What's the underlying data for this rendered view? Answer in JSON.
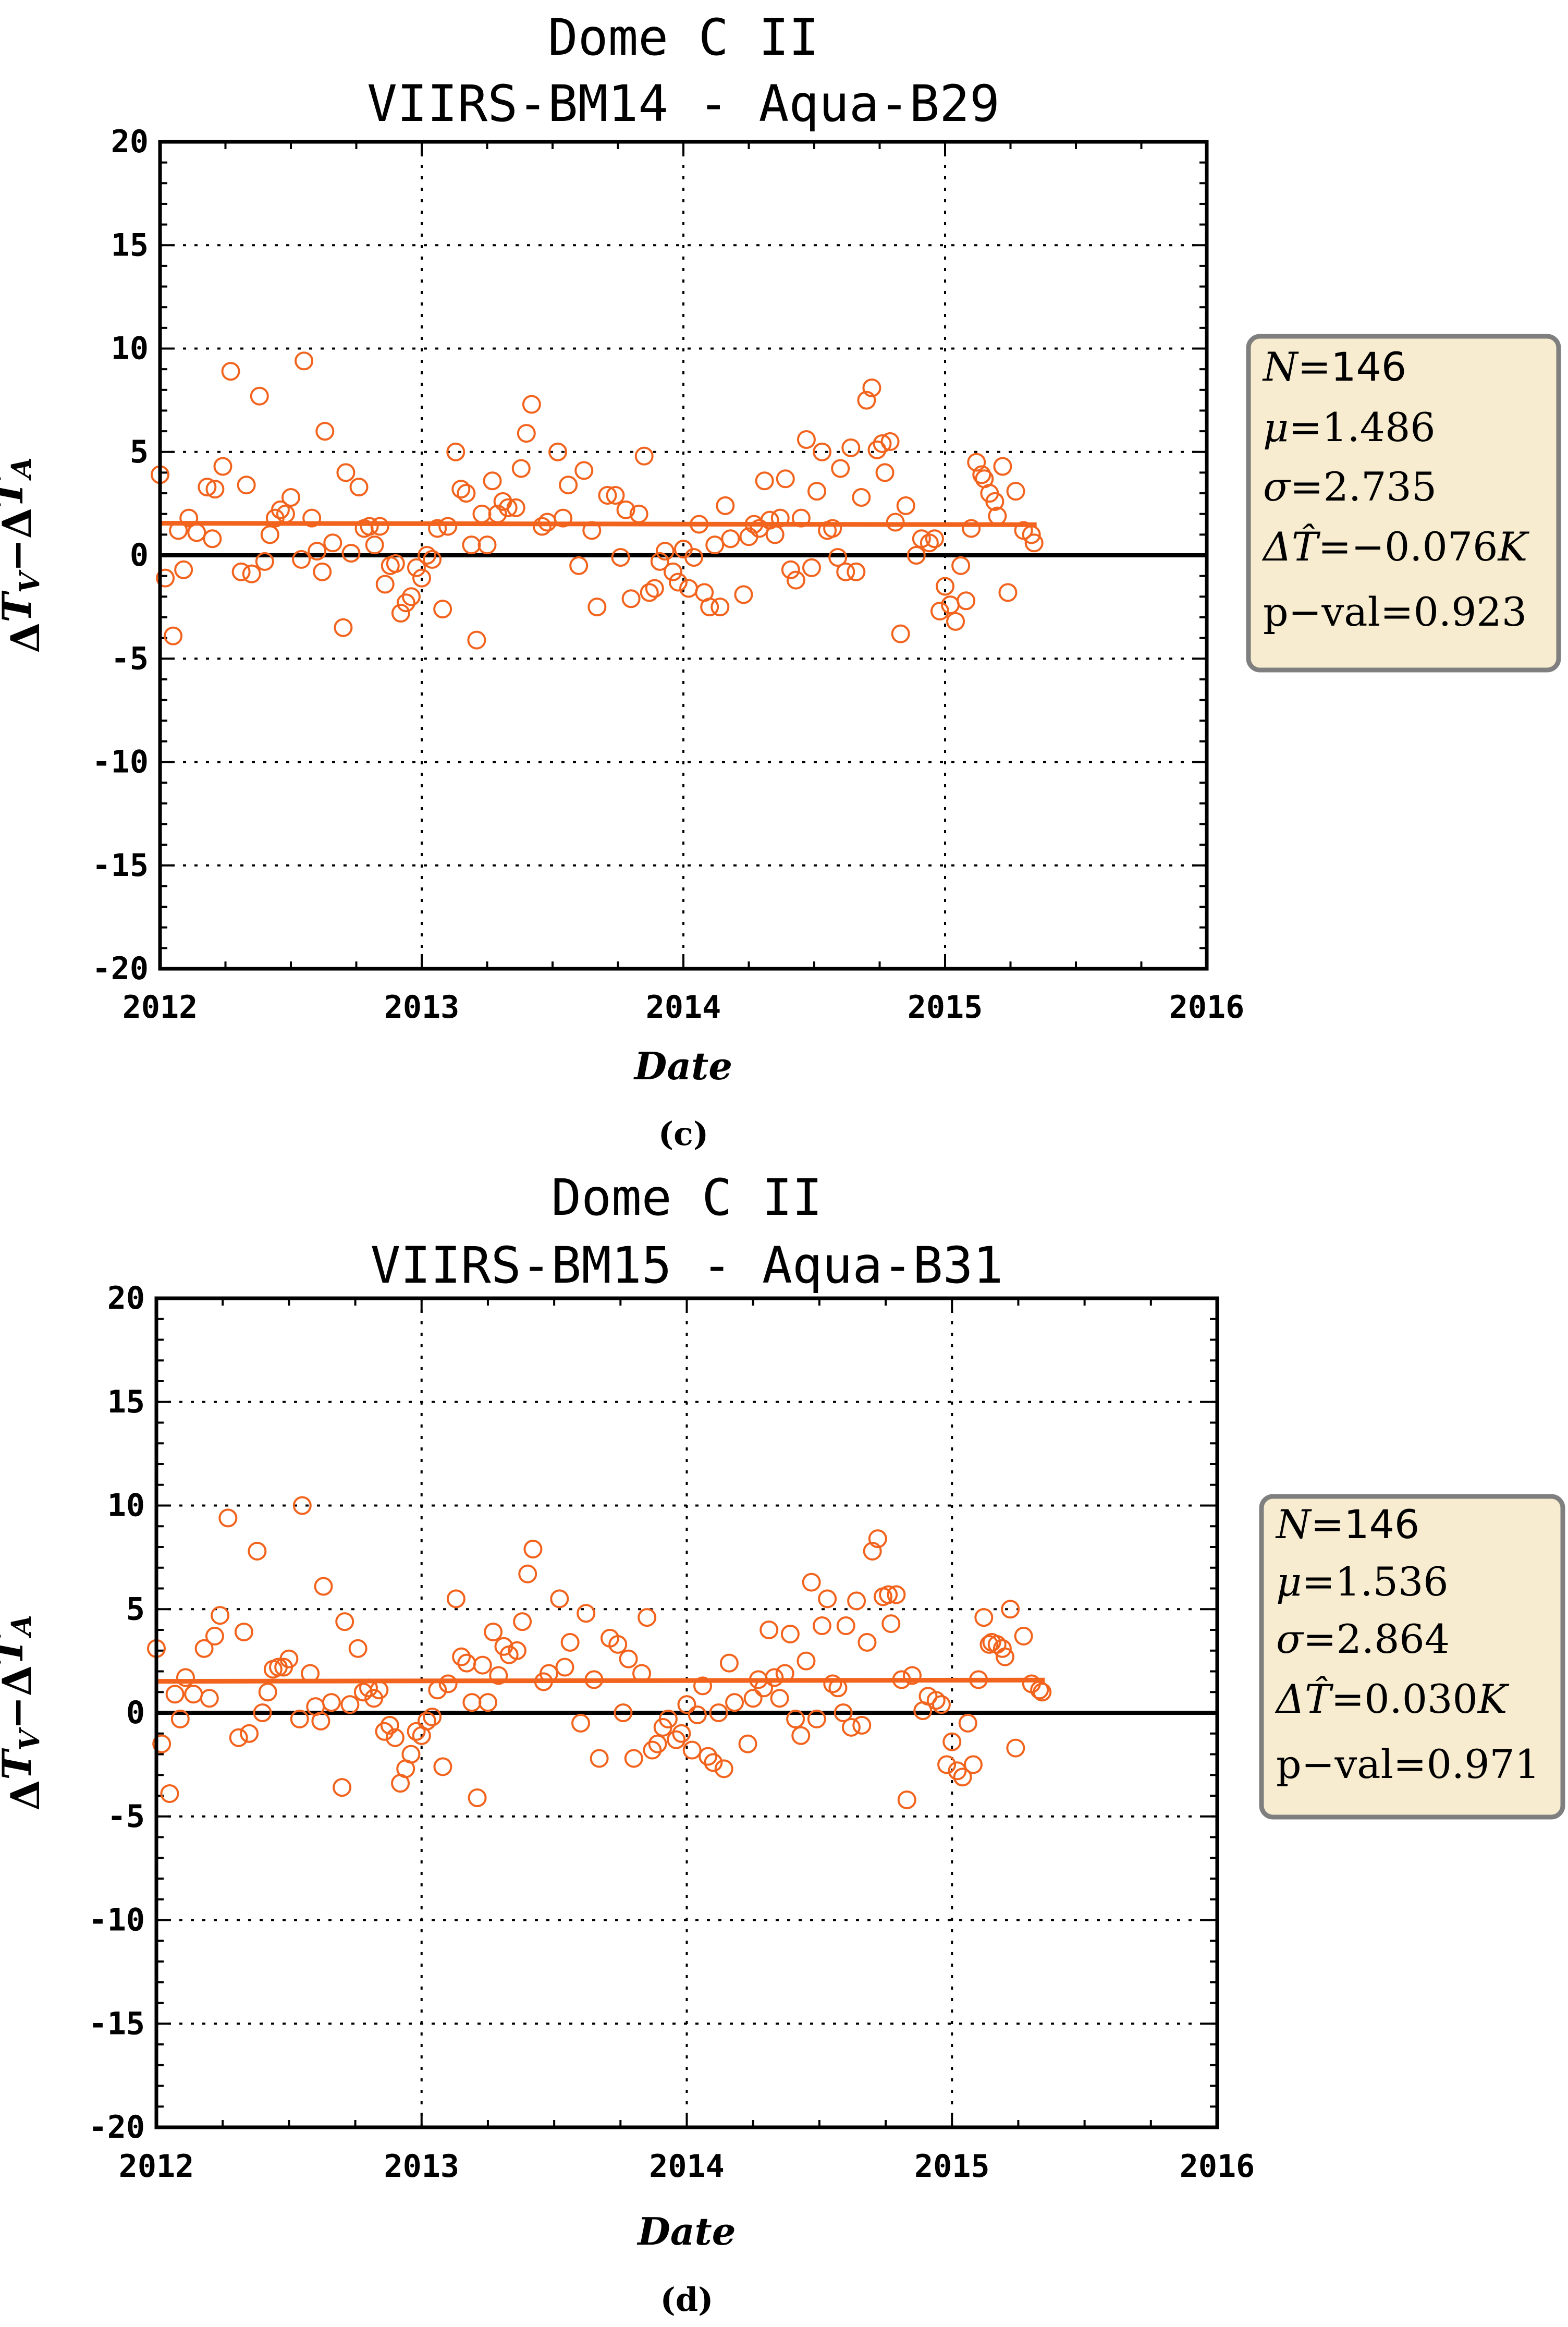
{
  "chart_data": [
    {
      "type": "scatter",
      "title_lines": [
        "Dome C II",
        "VIIRS-BM14 - Aqua-B29"
      ],
      "xlabel": "Date",
      "ylabel": "ΔT_V−ΔT_A",
      "xlim": [
        2012,
        2016
      ],
      "ylim": [
        -20,
        20
      ],
      "xticks": [
        "2012",
        "2013",
        "2014",
        "2015",
        "2016"
      ],
      "yticks": [
        "20",
        "15",
        "10",
        "5",
        "0",
        "-5",
        "-10",
        "-15",
        "-20"
      ],
      "caption": "(c)",
      "stats": {
        "N_label": "N",
        "N": "146",
        "mu_label": "μ",
        "mu": "1.486",
        "sigma_label": "σ",
        "sigma": "2.735",
        "dT_label": "ΔT̂",
        "dT": "−0.076",
        "dT_unit": "K",
        "pval_label": "p−val",
        "pval": "0.923"
      },
      "trend": {
        "x": [
          2012.0,
          2015.35
        ],
        "y": [
          1.55,
          1.48
        ]
      },
      "points": [
        [
          2012.0,
          3.9
        ],
        [
          2012.02,
          -1.1
        ],
        [
          2012.05,
          -3.9
        ],
        [
          2012.07,
          1.2
        ],
        [
          2012.09,
          -0.7
        ],
        [
          2012.11,
          1.8
        ],
        [
          2012.14,
          1.1
        ],
        [
          2012.18,
          3.3
        ],
        [
          2012.2,
          0.8
        ],
        [
          2012.21,
          3.2
        ],
        [
          2012.24,
          4.3
        ],
        [
          2012.27,
          8.9
        ],
        [
          2012.31,
          -0.8
        ],
        [
          2012.33,
          3.4
        ],
        [
          2012.35,
          -0.9
        ],
        [
          2012.38,
          7.7
        ],
        [
          2012.4,
          -0.3
        ],
        [
          2012.42,
          1.0
        ],
        [
          2012.44,
          1.8
        ],
        [
          2012.46,
          2.2
        ],
        [
          2012.48,
          2.0
        ],
        [
          2012.5,
          2.8
        ],
        [
          2012.54,
          -0.2
        ],
        [
          2012.55,
          9.4
        ],
        [
          2012.58,
          1.8
        ],
        [
          2012.6,
          0.2
        ],
        [
          2012.62,
          -0.8
        ],
        [
          2012.63,
          6.0
        ],
        [
          2012.7,
          -3.5
        ],
        [
          2012.71,
          4.0
        ],
        [
          2012.73,
          0.1
        ],
        [
          2012.76,
          3.3
        ],
        [
          2012.78,
          1.3
        ],
        [
          2012.8,
          1.4
        ],
        [
          2012.82,
          0.5
        ],
        [
          2012.84,
          1.4
        ],
        [
          2012.86,
          -1.4
        ],
        [
          2012.88,
          -0.5
        ],
        [
          2012.9,
          -0.4
        ],
        [
          2012.92,
          -2.8
        ],
        [
          2012.94,
          -2.3
        ],
        [
          2012.96,
          -2.0
        ],
        [
          2012.98,
          -0.6
        ],
        [
          2013.0,
          -1.1
        ],
        [
          2013.02,
          0.0
        ],
        [
          2013.04,
          -0.2
        ],
        [
          2013.06,
          1.3
        ],
        [
          2013.08,
          -2.6
        ],
        [
          2013.1,
          1.4
        ],
        [
          2013.13,
          5.0
        ],
        [
          2013.15,
          3.2
        ],
        [
          2013.17,
          3.0
        ],
        [
          2013.19,
          0.5
        ],
        [
          2013.21,
          -4.1
        ],
        [
          2013.23,
          2.0
        ],
        [
          2013.25,
          0.5
        ],
        [
          2013.27,
          3.6
        ],
        [
          2013.29,
          2.0
        ],
        [
          2013.31,
          2.6
        ],
        [
          2013.33,
          2.3
        ],
        [
          2013.36,
          2.3
        ],
        [
          2013.38,
          4.2
        ],
        [
          2013.4,
          5.9
        ],
        [
          2013.42,
          7.3
        ],
        [
          2013.46,
          1.4
        ],
        [
          2013.52,
          5.0
        ],
        [
          2013.54,
          1.8
        ],
        [
          2013.56,
          3.4
        ],
        [
          2013.6,
          -0.5
        ],
        [
          2013.62,
          4.1
        ],
        [
          2013.65,
          1.2
        ],
        [
          2013.67,
          -2.5
        ],
        [
          2013.71,
          2.9
        ],
        [
          2013.74,
          2.9
        ],
        [
          2013.76,
          -0.1
        ],
        [
          2013.78,
          2.2
        ],
        [
          2013.8,
          -2.1
        ],
        [
          2013.83,
          2.0
        ],
        [
          2013.85,
          4.8
        ],
        [
          2013.87,
          -1.8
        ],
        [
          2013.89,
          -1.6
        ],
        [
          2013.91,
          -0.3
        ],
        [
          2013.93,
          0.2
        ],
        [
          2013.96,
          -0.8
        ],
        [
          2013.98,
          -1.3
        ],
        [
          2014.0,
          0.3
        ],
        [
          2014.02,
          -1.6
        ],
        [
          2014.04,
          -0.1
        ],
        [
          2014.06,
          1.5
        ],
        [
          2014.08,
          -1.8
        ],
        [
          2014.1,
          -2.5
        ],
        [
          2014.12,
          0.5
        ],
        [
          2014.14,
          -2.5
        ],
        [
          2014.16,
          2.4
        ],
        [
          2014.18,
          0.8
        ],
        [
          2014.23,
          -1.9
        ],
        [
          2014.27,
          1.5
        ],
        [
          2014.29,
          1.3
        ],
        [
          2014.31,
          3.6
        ],
        [
          2014.33,
          1.7
        ],
        [
          2014.35,
          1.0
        ],
        [
          2014.37,
          1.8
        ],
        [
          2014.39,
          3.7
        ],
        [
          2014.41,
          -0.7
        ],
        [
          2014.43,
          -1.2
        ],
        [
          2014.45,
          1.8
        ],
        [
          2014.47,
          5.6
        ],
        [
          2014.49,
          -0.6
        ],
        [
          2014.51,
          3.1
        ],
        [
          2014.53,
          5.0
        ],
        [
          2014.57,
          1.3
        ],
        [
          2014.59,
          -0.1
        ],
        [
          2014.6,
          4.2
        ],
        [
          2014.62,
          -0.8
        ],
        [
          2014.64,
          5.2
        ],
        [
          2014.66,
          -0.8
        ],
        [
          2014.68,
          2.8
        ],
        [
          2014.7,
          7.5
        ],
        [
          2014.72,
          8.1
        ],
        [
          2014.74,
          5.1
        ],
        [
          2014.76,
          5.4
        ],
        [
          2014.77,
          4.0
        ],
        [
          2014.79,
          5.5
        ],
        [
          2014.81,
          1.6
        ],
        [
          2014.83,
          -3.8
        ],
        [
          2014.85,
          2.4
        ],
        [
          2014.89,
          0.0
        ],
        [
          2014.91,
          0.8
        ],
        [
          2014.94,
          0.6
        ],
        [
          2014.96,
          0.8
        ],
        [
          2014.98,
          -2.7
        ],
        [
          2015.0,
          -1.5
        ],
        [
          2015.02,
          -2.4
        ],
        [
          2015.04,
          -3.2
        ],
        [
          2015.06,
          -0.5
        ],
        [
          2015.08,
          -2.2
        ],
        [
          2015.1,
          1.3
        ],
        [
          2015.12,
          4.5
        ],
        [
          2015.14,
          3.9
        ],
        [
          2015.15,
          3.7
        ],
        [
          2015.17,
          3.0
        ],
        [
          2015.2,
          1.9
        ],
        [
          2015.22,
          4.3
        ],
        [
          2015.24,
          -1.8
        ],
        [
          2015.27,
          3.1
        ],
        [
          2015.3,
          1.2
        ],
        [
          2015.33,
          1.0
        ],
        [
          2015.34,
          0.6
        ],
        [
          2014.55,
          1.2
        ],
        [
          2013.48,
          1.6
        ],
        [
          2012.66,
          0.6
        ],
        [
          2014.25,
          0.9
        ],
        [
          2015.19,
          2.6
        ]
      ]
    },
    {
      "type": "scatter",
      "title_lines": [
        "Dome C II",
        "VIIRS-BM15 - Aqua-B31"
      ],
      "xlabel": "Date",
      "ylabel": "ΔT_V−ΔT_A",
      "xlim": [
        2012,
        2016
      ],
      "ylim": [
        -20,
        20
      ],
      "xticks": [
        "2012",
        "2013",
        "2014",
        "2015",
        "2016"
      ],
      "yticks": [
        "20",
        "15",
        "10",
        "5",
        "0",
        "-5",
        "-10",
        "-15",
        "-20"
      ],
      "caption": "(d)",
      "stats": {
        "N_label": "N",
        "N": "146",
        "mu_label": "μ",
        "mu": "1.536",
        "sigma_label": "σ",
        "sigma": "2.864",
        "dT_label": "ΔT̂",
        "dT": "0.030",
        "dT_unit": "K",
        "pval_label": "p−val",
        "pval": "0.971"
      },
      "trend": {
        "x": [
          2012.0,
          2015.35
        ],
        "y": [
          1.52,
          1.58
        ]
      },
      "points": [
        [
          2012.0,
          3.1
        ],
        [
          2012.02,
          -1.5
        ],
        [
          2012.05,
          -3.9
        ],
        [
          2012.07,
          0.9
        ],
        [
          2012.09,
          -0.3
        ],
        [
          2012.11,
          1.7
        ],
        [
          2012.14,
          0.9
        ],
        [
          2012.18,
          3.1
        ],
        [
          2012.2,
          0.7
        ],
        [
          2012.22,
          3.7
        ],
        [
          2012.24,
          4.7
        ],
        [
          2012.27,
          9.4
        ],
        [
          2012.31,
          -1.2
        ],
        [
          2012.33,
          3.9
        ],
        [
          2012.35,
          -1.0
        ],
        [
          2012.38,
          7.8
        ],
        [
          2012.4,
          0.0
        ],
        [
          2012.42,
          1.0
        ],
        [
          2012.44,
          2.1
        ],
        [
          2012.46,
          2.2
        ],
        [
          2012.48,
          2.2
        ],
        [
          2012.5,
          2.6
        ],
        [
          2012.54,
          -0.3
        ],
        [
          2012.55,
          10.0
        ],
        [
          2012.58,
          1.9
        ],
        [
          2012.6,
          0.3
        ],
        [
          2012.62,
          -0.4
        ],
        [
          2012.63,
          6.1
        ],
        [
          2012.7,
          -3.6
        ],
        [
          2012.71,
          4.4
        ],
        [
          2012.73,
          0.4
        ],
        [
          2012.76,
          3.1
        ],
        [
          2012.78,
          1.0
        ],
        [
          2012.8,
          1.2
        ],
        [
          2012.82,
          0.7
        ],
        [
          2012.84,
          1.1
        ],
        [
          2012.86,
          -0.9
        ],
        [
          2012.88,
          -0.6
        ],
        [
          2012.9,
          -1.2
        ],
        [
          2012.92,
          -3.4
        ],
        [
          2012.94,
          -2.7
        ],
        [
          2012.96,
          -2.0
        ],
        [
          2012.98,
          -0.9
        ],
        [
          2013.0,
          -1.1
        ],
        [
          2013.02,
          -0.4
        ],
        [
          2013.04,
          -0.2
        ],
        [
          2013.06,
          1.1
        ],
        [
          2013.08,
          -2.6
        ],
        [
          2013.1,
          1.4
        ],
        [
          2013.13,
          5.5
        ],
        [
          2013.15,
          2.7
        ],
        [
          2013.17,
          2.4
        ],
        [
          2013.19,
          0.5
        ],
        [
          2013.21,
          -4.1
        ],
        [
          2013.23,
          2.3
        ],
        [
          2013.25,
          0.5
        ],
        [
          2013.27,
          3.9
        ],
        [
          2013.29,
          1.8
        ],
        [
          2013.31,
          3.2
        ],
        [
          2013.33,
          2.8
        ],
        [
          2013.36,
          3.0
        ],
        [
          2013.38,
          4.4
        ],
        [
          2013.4,
          6.7
        ],
        [
          2013.42,
          7.9
        ],
        [
          2013.46,
          1.5
        ],
        [
          2013.52,
          5.5
        ],
        [
          2013.54,
          2.2
        ],
        [
          2013.56,
          3.4
        ],
        [
          2013.6,
          -0.5
        ],
        [
          2013.62,
          4.8
        ],
        [
          2013.65,
          1.6
        ],
        [
          2013.67,
          -2.2
        ],
        [
          2013.71,
          3.6
        ],
        [
          2013.74,
          3.3
        ],
        [
          2013.76,
          0.0
        ],
        [
          2013.78,
          2.6
        ],
        [
          2013.8,
          -2.2
        ],
        [
          2013.83,
          1.9
        ],
        [
          2013.85,
          4.6
        ],
        [
          2013.87,
          -1.8
        ],
        [
          2013.89,
          -1.5
        ],
        [
          2013.91,
          -0.7
        ],
        [
          2013.93,
          -0.3
        ],
        [
          2013.96,
          -1.3
        ],
        [
          2013.98,
          -1.0
        ],
        [
          2014.0,
          0.4
        ],
        [
          2014.02,
          -1.8
        ],
        [
          2014.04,
          -0.1
        ],
        [
          2014.06,
          1.3
        ],
        [
          2014.08,
          -2.1
        ],
        [
          2014.1,
          -2.4
        ],
        [
          2014.12,
          0.0
        ],
        [
          2014.14,
          -2.7
        ],
        [
          2014.16,
          2.4
        ],
        [
          2014.18,
          0.5
        ],
        [
          2014.23,
          -1.5
        ],
        [
          2014.27,
          1.6
        ],
        [
          2014.29,
          1.2
        ],
        [
          2014.31,
          4.0
        ],
        [
          2014.33,
          1.7
        ],
        [
          2014.35,
          0.7
        ],
        [
          2014.37,
          1.9
        ],
        [
          2014.39,
          3.8
        ],
        [
          2014.41,
          -0.3
        ],
        [
          2014.43,
          -1.1
        ],
        [
          2014.45,
          2.5
        ],
        [
          2014.47,
          6.3
        ],
        [
          2014.49,
          -0.3
        ],
        [
          2014.51,
          4.2
        ],
        [
          2014.53,
          5.5
        ],
        [
          2014.57,
          1.2
        ],
        [
          2014.59,
          0.0
        ],
        [
          2014.6,
          4.2
        ],
        [
          2014.62,
          -0.7
        ],
        [
          2014.64,
          5.4
        ],
        [
          2014.66,
          -0.6
        ],
        [
          2014.68,
          3.4
        ],
        [
          2014.7,
          7.8
        ],
        [
          2014.72,
          8.4
        ],
        [
          2014.74,
          5.6
        ],
        [
          2014.76,
          5.7
        ],
        [
          2014.77,
          4.3
        ],
        [
          2014.79,
          5.7
        ],
        [
          2014.81,
          1.6
        ],
        [
          2014.83,
          -4.2
        ],
        [
          2014.85,
          1.8
        ],
        [
          2014.89,
          0.1
        ],
        [
          2014.91,
          0.8
        ],
        [
          2014.94,
          0.6
        ],
        [
          2014.96,
          0.4
        ],
        [
          2014.98,
          -2.5
        ],
        [
          2015.0,
          -1.4
        ],
        [
          2015.02,
          -2.8
        ],
        [
          2015.04,
          -3.1
        ],
        [
          2015.06,
          -0.5
        ],
        [
          2015.08,
          -2.5
        ],
        [
          2015.1,
          1.6
        ],
        [
          2015.12,
          4.6
        ],
        [
          2015.14,
          3.3
        ],
        [
          2015.15,
          3.4
        ],
        [
          2015.17,
          3.3
        ],
        [
          2015.2,
          2.7
        ],
        [
          2015.22,
          5.0
        ],
        [
          2015.24,
          -1.7
        ],
        [
          2015.27,
          3.7
        ],
        [
          2015.3,
          1.4
        ],
        [
          2015.33,
          1.1
        ],
        [
          2015.34,
          1.0
        ],
        [
          2014.55,
          1.4
        ],
        [
          2013.48,
          1.9
        ],
        [
          2012.66,
          0.5
        ],
        [
          2014.25,
          0.7
        ],
        [
          2015.19,
          3.1
        ]
      ]
    }
  ]
}
